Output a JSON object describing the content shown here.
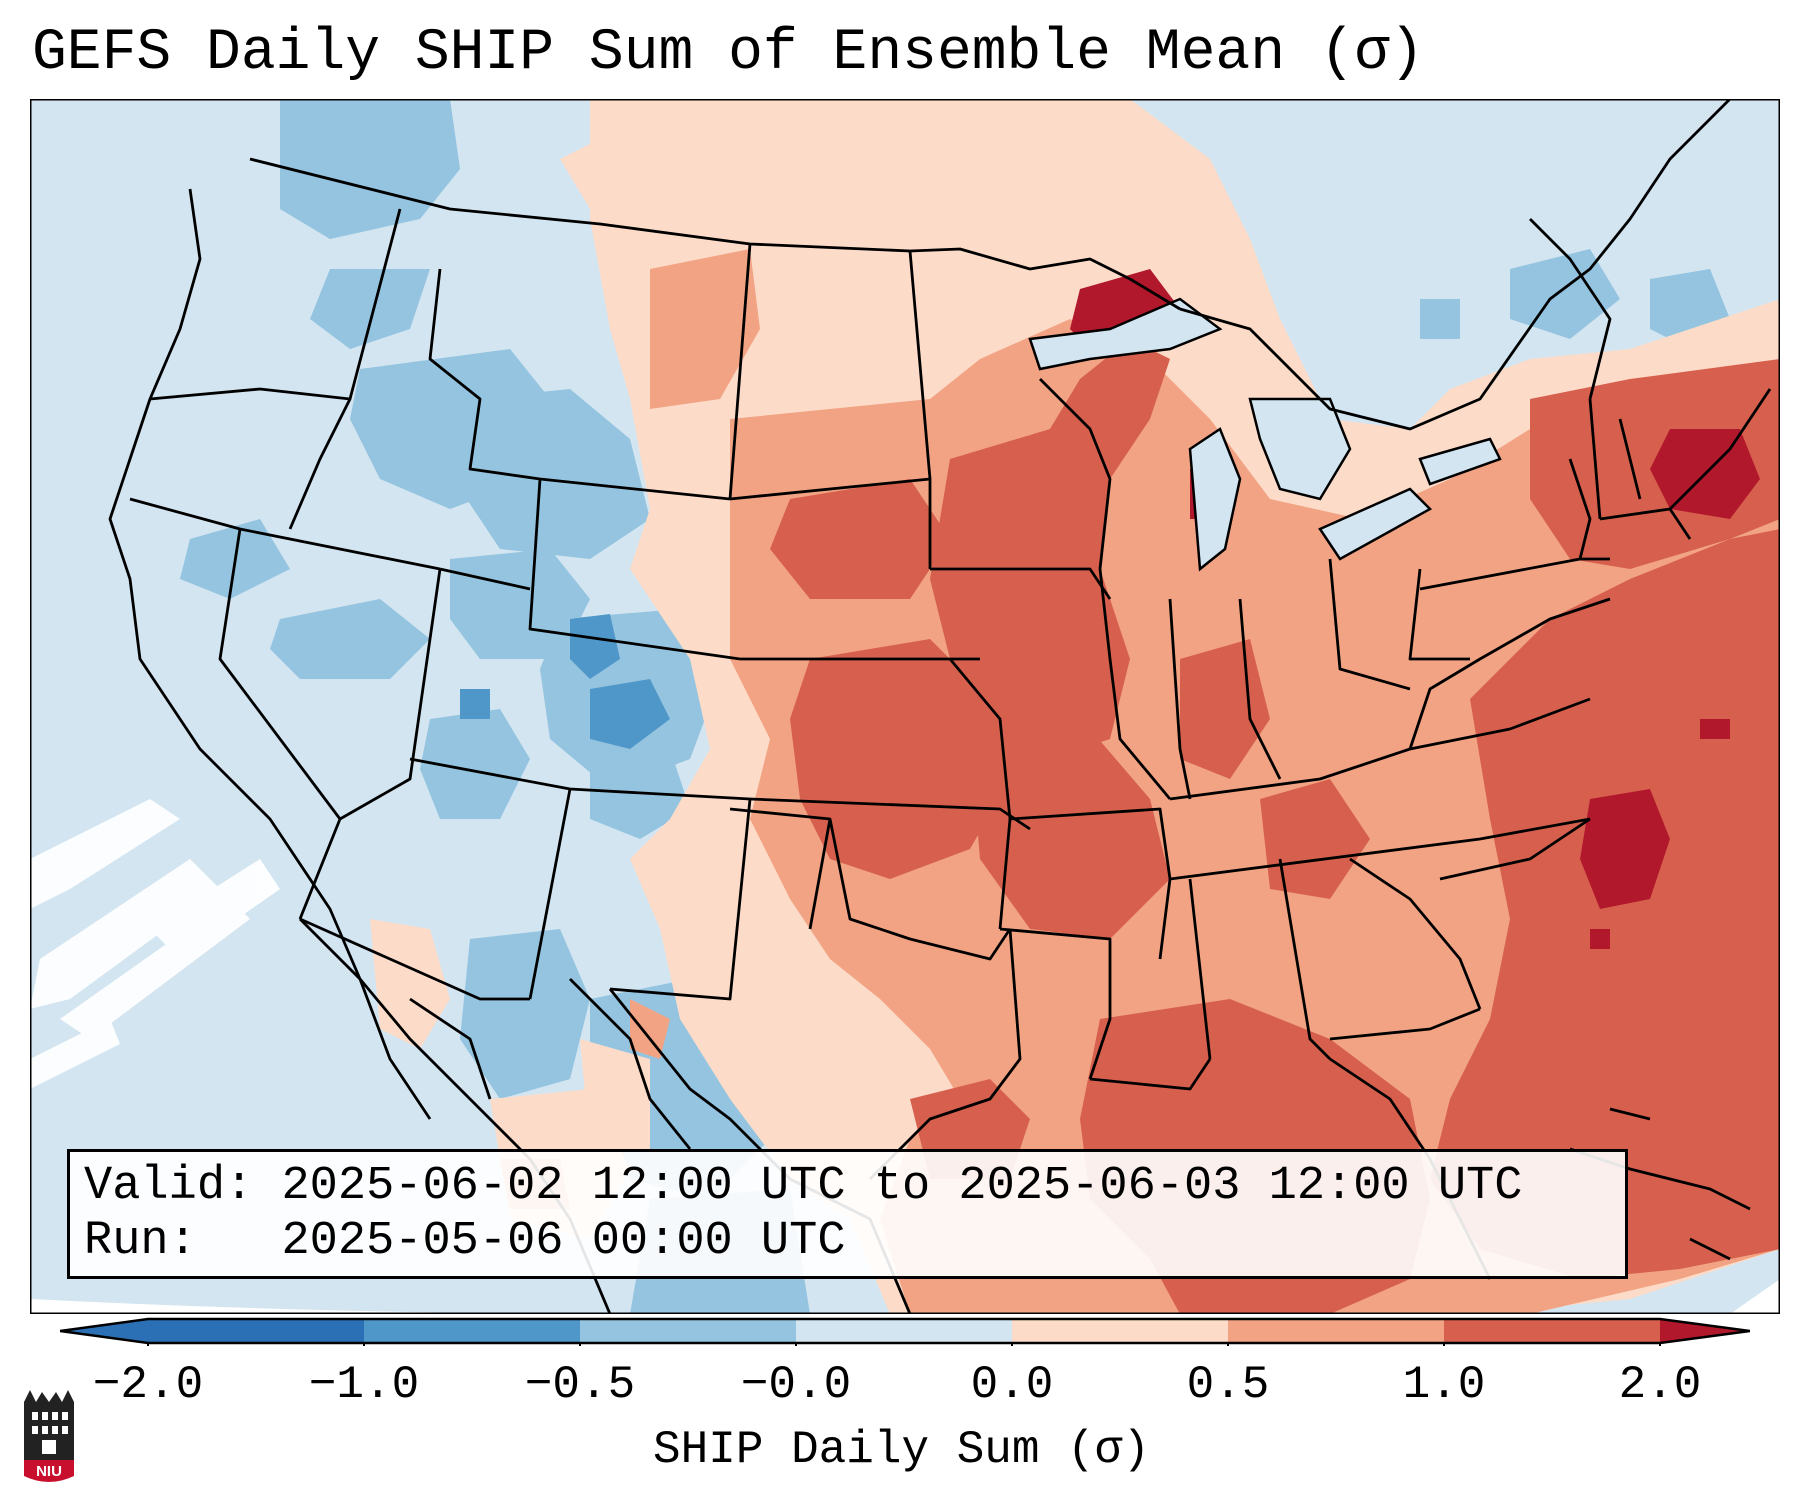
{
  "title": "GEFS Daily SHIP Sum of Ensemble Mean (σ)",
  "info": {
    "valid_label": "Valid:",
    "valid_value": "2025-06-02 12:00 UTC to 2025-06-03 12:00 UTC",
    "run_label": "Run:",
    "run_value": "2025-05-06 00:00 UTC"
  },
  "colorbar": {
    "label": "SHIP Daily Sum (σ)",
    "ticks": [
      "−2.0",
      "−1.0",
      "−0.5",
      "−0.0",
      "0.0",
      "0.5",
      "1.0",
      "2.0"
    ],
    "colors": [
      "#2b6fb5",
      "#4f96c9",
      "#94c4df",
      "#d2e5f1",
      "#fcdcc9",
      "#f2a383",
      "#d6604d",
      "#b2182b"
    ],
    "extend": "both"
  },
  "legend_colors": {
    "strong_negative": "#2b6fb5",
    "negative": "#4f96c9",
    "weak_negative": "#94c4df",
    "near_zero_negative": "#d2e5f1",
    "near_zero_positive": "#fcdcc9",
    "weak_positive": "#f2a383",
    "positive": "#d6604d",
    "strong_positive": "#b2182b"
  },
  "logo": {
    "text": "NIU"
  }
}
